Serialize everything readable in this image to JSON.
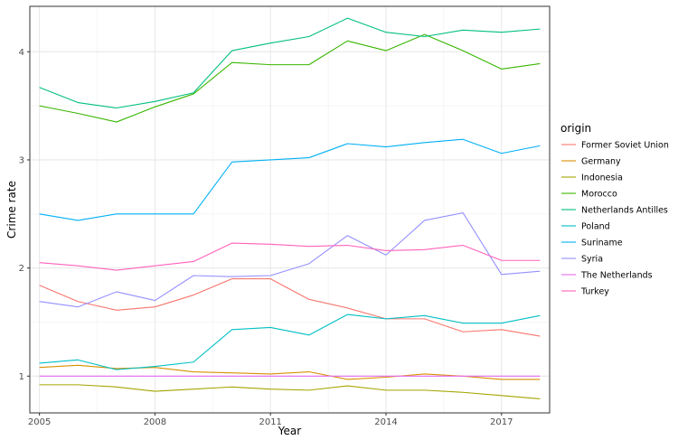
{
  "chart_data": {
    "type": "line",
    "xlabel": "Year",
    "ylabel": "Crime rate",
    "x": [
      2005,
      2006,
      2007,
      2008,
      2009,
      2010,
      2011,
      2012,
      2013,
      2014,
      2015,
      2016,
      2017,
      2018
    ],
    "xlim": [
      2004.75,
      2018.25
    ],
    "ylim": [
      0.66,
      4.42
    ],
    "x_ticks": [
      2005,
      2008,
      2011,
      2014,
      2017
    ],
    "x_minor_ticks": [
      2006.5,
      2009.5,
      2012.5,
      2015.5
    ],
    "y_ticks": [
      1,
      2,
      3,
      4
    ],
    "y_minor_ticks": [
      1.5,
      2.5,
      3.5
    ],
    "grid": true,
    "legend": {
      "title": "origin",
      "position": "right"
    },
    "series": [
      {
        "name": "Former Soviet Union",
        "color": "#F8766D",
        "values": [
          1.84,
          1.69,
          1.61,
          1.64,
          1.75,
          1.9,
          1.9,
          1.71,
          1.63,
          1.53,
          1.53,
          1.41,
          1.43,
          1.37
        ]
      },
      {
        "name": "Germany",
        "color": "#D89000",
        "values": [
          1.08,
          1.1,
          1.07,
          1.08,
          1.04,
          1.03,
          1.02,
          1.04,
          0.97,
          0.99,
          1.02,
          1.0,
          0.97,
          0.97
        ]
      },
      {
        "name": "Indonesia",
        "color": "#A3A500",
        "values": [
          0.92,
          0.92,
          0.9,
          0.86,
          0.88,
          0.9,
          0.88,
          0.87,
          0.91,
          0.87,
          0.87,
          0.85,
          0.82,
          0.79
        ]
      },
      {
        "name": "Morocco",
        "color": "#39B600",
        "values": [
          3.5,
          3.43,
          3.35,
          3.49,
          3.61,
          3.9,
          3.88,
          3.88,
          4.1,
          4.01,
          4.16,
          4.01,
          3.84,
          3.89
        ]
      },
      {
        "name": "Netherlands Antilles",
        "color": "#00BF7D",
        "values": [
          3.67,
          3.53,
          3.48,
          3.54,
          3.62,
          4.01,
          4.08,
          4.14,
          4.31,
          4.18,
          4.14,
          4.2,
          4.18,
          4.21
        ]
      },
      {
        "name": "Poland",
        "color": "#00BFC4",
        "values": [
          1.12,
          1.15,
          1.06,
          1.09,
          1.13,
          1.43,
          1.45,
          1.38,
          1.57,
          1.53,
          1.56,
          1.49,
          1.49,
          1.56
        ]
      },
      {
        "name": "Suriname",
        "color": "#00B0F6",
        "values": [
          2.5,
          2.44,
          2.5,
          2.5,
          2.5,
          2.98,
          3.0,
          3.02,
          3.15,
          3.12,
          3.16,
          3.19,
          3.06,
          3.13
        ]
      },
      {
        "name": "Syria",
        "color": "#9590FF",
        "values": [
          1.69,
          1.64,
          1.78,
          1.7,
          1.93,
          1.92,
          1.93,
          2.04,
          2.3,
          2.12,
          2.44,
          2.51,
          1.94,
          1.97
        ]
      },
      {
        "name": "The Netherlands",
        "color": "#E76BF3",
        "values": [
          1.0,
          1.0,
          1.0,
          1.0,
          1.0,
          1.0,
          1.0,
          1.0,
          1.0,
          1.0,
          1.0,
          1.0,
          1.0,
          1.0
        ]
      },
      {
        "name": "Turkey",
        "color": "#FF62BC",
        "values": [
          2.05,
          2.02,
          1.98,
          2.02,
          2.06,
          2.23,
          2.22,
          2.2,
          2.21,
          2.16,
          2.17,
          2.21,
          2.07,
          2.07
        ]
      }
    ]
  }
}
